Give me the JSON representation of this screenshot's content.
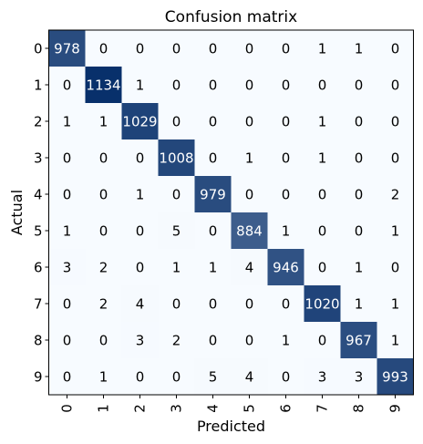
{
  "chart_data": {
    "type": "heatmap",
    "title": "Confusion matrix",
    "xlabel": "Predicted",
    "ylabel": "Actual",
    "x_ticks": [
      "0",
      "1",
      "2",
      "3",
      "4",
      "5",
      "6",
      "7",
      "8",
      "9"
    ],
    "y_ticks": [
      "0",
      "1",
      "2",
      "3",
      "4",
      "5",
      "6",
      "7",
      "8",
      "9"
    ],
    "colormap": "Blues",
    "grid": false,
    "values": [
      [
        978,
        0,
        0,
        0,
        0,
        0,
        0,
        1,
        1,
        0
      ],
      [
        0,
        1134,
        1,
        0,
        0,
        0,
        0,
        0,
        0,
        0
      ],
      [
        1,
        1,
        1029,
        0,
        0,
        0,
        0,
        1,
        0,
        0
      ],
      [
        0,
        0,
        0,
        1008,
        0,
        1,
        0,
        1,
        0,
        0
      ],
      [
        0,
        0,
        1,
        0,
        979,
        0,
        0,
        0,
        0,
        2
      ],
      [
        1,
        0,
        0,
        5,
        0,
        884,
        1,
        0,
        0,
        1
      ],
      [
        3,
        2,
        0,
        1,
        1,
        4,
        946,
        0,
        1,
        0
      ],
      [
        0,
        2,
        4,
        0,
        0,
        0,
        0,
        1020,
        1,
        1
      ],
      [
        0,
        0,
        3,
        2,
        0,
        0,
        1,
        0,
        967,
        1
      ],
      [
        0,
        1,
        0,
        0,
        5,
        4,
        0,
        3,
        3,
        993
      ]
    ]
  },
  "colors": {
    "low": "#f7fbff",
    "high": "#08306b",
    "dark_text": "#000000",
    "light_text": "#ffffff"
  }
}
